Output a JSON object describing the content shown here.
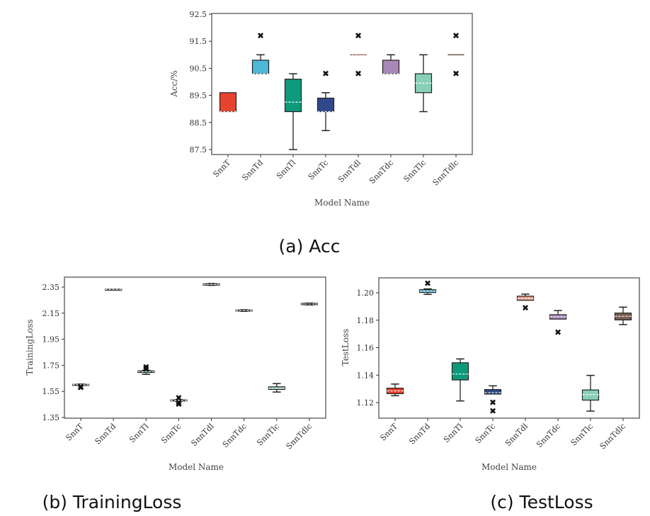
{
  "chart_data": [
    {
      "id": "acc",
      "type": "box",
      "caption": "(a) Acc",
      "xlabel": "Model Name",
      "ylabel": "Acc/%",
      "ylim": [
        87.3,
        92.5
      ],
      "yticks": [
        87.5,
        88.5,
        89.5,
        90.5,
        91.5,
        92.5
      ],
      "ytick_labels": [
        "87.5",
        "88.5",
        "89.5",
        "90.5",
        "91.5",
        "92.5"
      ],
      "categories": [
        "SnnT",
        "SnnTd",
        "SnnTl",
        "SnnTc",
        "SnnTdl",
        "SnnTdc",
        "SnnTlc",
        "SnnTdlc"
      ],
      "colors": [
        "#e8432e",
        "#4db8d8",
        "#0e9a7a",
        "#2f4a8a",
        "#e89a88",
        "#a888b8",
        "#88d0b8",
        "#7a6050"
      ],
      "boxes": [
        {
          "q1": 88.9,
          "q3": 89.6,
          "median": 88.9,
          "whisker_low": 88.9,
          "whisker_high": 89.6,
          "outliers": []
        },
        {
          "q1": 90.3,
          "q3": 90.8,
          "median": 90.3,
          "whisker_low": 90.3,
          "whisker_high": 91.0,
          "outliers": [
            91.7
          ]
        },
        {
          "q1": 88.9,
          "q3": 90.1,
          "median": 89.25,
          "whisker_low": 87.5,
          "whisker_high": 90.3,
          "outliers": []
        },
        {
          "q1": 88.9,
          "q3": 89.4,
          "median": 88.9,
          "whisker_low": 88.2,
          "whisker_high": 89.6,
          "outliers": [
            90.3
          ]
        },
        {
          "q1": 91.0,
          "q3": 91.0,
          "median": 91.0,
          "whisker_low": 91.0,
          "whisker_high": 91.0,
          "outliers": [
            91.7,
            90.3
          ]
        },
        {
          "q1": 90.3,
          "q3": 90.8,
          "median": 90.3,
          "whisker_low": 90.3,
          "whisker_high": 91.0,
          "outliers": []
        },
        {
          "q1": 89.6,
          "q3": 90.3,
          "median": 89.95,
          "whisker_low": 88.9,
          "whisker_high": 91.0,
          "outliers": []
        },
        {
          "q1": 91.0,
          "q3": 91.0,
          "median": 91.0,
          "whisker_low": 91.0,
          "whisker_high": 91.0,
          "outliers": [
            91.7,
            90.3
          ]
        }
      ],
      "grid": false
    },
    {
      "id": "trainloss",
      "type": "box",
      "caption": "(b) TrainingLoss",
      "xlabel": "Model Name",
      "ylabel": "TrainingLoss",
      "ylim": [
        1.35,
        2.4
      ],
      "yticks": [
        1.35,
        1.55,
        1.75,
        1.95,
        2.15,
        2.35
      ],
      "ytick_labels": [
        "1.35",
        "1.55",
        "1.75",
        "1.95",
        "2.15",
        "2.35"
      ],
      "categories": [
        "SnnT",
        "SnnTd",
        "SnnTl",
        "SnnTc",
        "SnnTdl",
        "SnnTdc",
        "SnnTlc",
        "SnnTdlc"
      ],
      "colors": [
        "#e8432e",
        "#4db8d8",
        "#0e9a7a",
        "#2f4a8a",
        "#e89a88",
        "#a888b8",
        "#88d0b8",
        "#7a6050"
      ],
      "boxes": [
        {
          "q1": 1.598,
          "q3": 1.604,
          "median": 1.601,
          "whisker_low": 1.596,
          "whisker_high": 1.606,
          "outliers": [
            1.585,
            1.578
          ]
        },
        {
          "q1": 2.33,
          "q3": 2.334,
          "median": 2.332,
          "whisker_low": 2.33,
          "whisker_high": 2.334,
          "outliers": []
        },
        {
          "q1": 1.695,
          "q3": 1.707,
          "median": 1.701,
          "whisker_low": 1.681,
          "whisker_high": 1.712,
          "outliers": [
            1.735,
            1.722
          ]
        },
        {
          "q1": 1.477,
          "q3": 1.485,
          "median": 1.481,
          "whisker_low": 1.475,
          "whisker_high": 1.487,
          "outliers": [
            1.5,
            1.462,
            1.45
          ]
        },
        {
          "q1": 2.365,
          "q3": 2.375,
          "median": 2.37,
          "whisker_low": 2.363,
          "whisker_high": 2.377,
          "outliers": []
        },
        {
          "q1": 2.166,
          "q3": 2.174,
          "median": 2.17,
          "whisker_low": 2.164,
          "whisker_high": 2.176,
          "outliers": []
        },
        {
          "q1": 1.565,
          "q3": 1.585,
          "median": 1.575,
          "whisker_low": 1.545,
          "whisker_high": 1.61,
          "outliers": []
        },
        {
          "q1": 2.215,
          "q3": 2.225,
          "median": 2.22,
          "whisker_low": 2.213,
          "whisker_high": 2.227,
          "outliers": []
        }
      ],
      "grid": false
    },
    {
      "id": "testloss",
      "type": "box",
      "caption": "(c) TestLoss",
      "xlabel": "Model Name",
      "ylabel": "TestLoss",
      "ylim": [
        1.1095,
        1.2105
      ],
      "yticks": [
        1.12,
        1.14,
        1.16,
        1.18,
        1.2
      ],
      "ytick_labels": [
        "1.12",
        "1.14",
        "1.16",
        "1.18",
        "1.20"
      ],
      "categories": [
        "SnnT",
        "SnnTd",
        "SnnTl",
        "SnnTc",
        "SnnTdl",
        "SnnTdc",
        "SnnTlc",
        "SnnTdlc"
      ],
      "colors": [
        "#e8432e",
        "#4db8d8",
        "#0e9a7a",
        "#2f4a8a",
        "#e89a88",
        "#a888b8",
        "#88d0b8",
        "#7a6050"
      ],
      "boxes": [
        {
          "q1": 1.1265,
          "q3": 1.1305,
          "median": 1.1285,
          "whisker_low": 1.125,
          "whisker_high": 1.1335,
          "outliers": []
        },
        {
          "q1": 1.2002,
          "q3": 1.2022,
          "median": 1.2012,
          "whisker_low": 1.1988,
          "whisker_high": 1.2028,
          "outliers": [
            1.2068
          ]
        },
        {
          "q1": 1.1365,
          "q3": 1.149,
          "median": 1.1408,
          "whisker_low": 1.1212,
          "whisker_high": 1.1518,
          "outliers": []
        },
        {
          "q1": 1.1262,
          "q3": 1.1295,
          "median": 1.1272,
          "whisker_low": 1.1262,
          "whisker_high": 1.1322,
          "outliers": [
            1.12,
            1.1138
          ]
        },
        {
          "q1": 1.1945,
          "q3": 1.1975,
          "median": 1.1958,
          "whisker_low": 1.1945,
          "whisker_high": 1.199,
          "outliers": [
            1.189
          ]
        },
        {
          "q1": 1.1808,
          "q3": 1.184,
          "median": 1.1825,
          "whisker_low": 1.1808,
          "whisker_high": 1.187,
          "outliers": [
            1.171
          ]
        },
        {
          "q1": 1.1218,
          "q3": 1.1292,
          "median": 1.1258,
          "whisker_low": 1.1138,
          "whisker_high": 1.1398,
          "outliers": []
        },
        {
          "q1": 1.1802,
          "q3": 1.1852,
          "median": 1.1828,
          "whisker_low": 1.1768,
          "whisker_high": 1.1895,
          "outliers": []
        }
      ],
      "grid": false
    }
  ]
}
